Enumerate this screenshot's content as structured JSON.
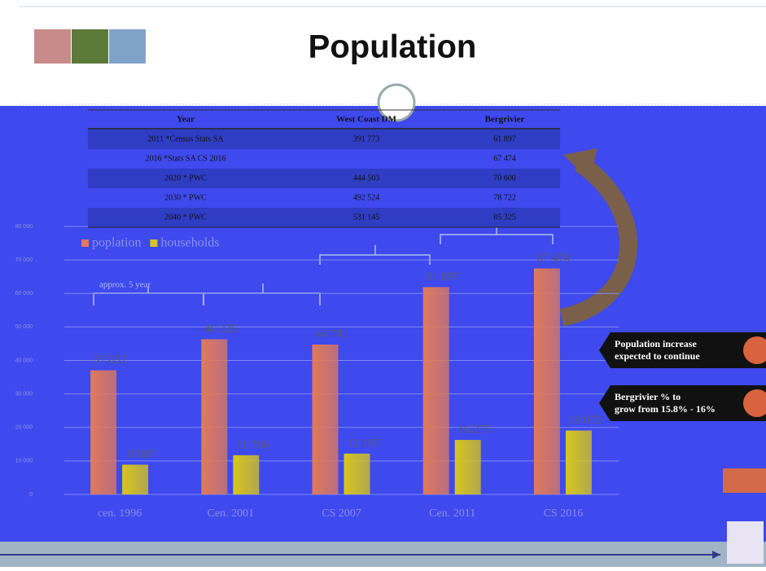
{
  "title": "Population",
  "table": {
    "header": [
      "Year",
      "West Coast DM",
      "Bergrivier"
    ],
    "rows": [
      [
        "2011 *Census Stats SA",
        "391 773",
        "61 897"
      ],
      [
        "2016 *Stats SA CS 2016",
        null,
        "67 474"
      ],
      [
        "2020 * PWC",
        "444 503",
        "70 600"
      ],
      [
        "2030 * PWC",
        "492 524",
        "78 722"
      ],
      [
        "2040 * PWC",
        "531 145",
        "85 325"
      ]
    ]
  },
  "callouts": [
    [
      "Population increase",
      "expected to continue"
    ],
    [
      "Bergrivier % to",
      "grow from 15.8% - 16%"
    ]
  ],
  "chart_data": {
    "type": "bar",
    "categories": [
      "cen. 1996",
      "Cen. 2001",
      "CS 2007",
      "Cen. 2011",
      "CS 2016"
    ],
    "series": [
      {
        "name": "poplation",
        "color": "#e07a5a",
        "values": [
          37052,
          46325,
          44741,
          61897,
          67474
        ],
        "value_labels": [
          "37 052",
          "46 325",
          "44 741",
          "61 897",
          "67 474"
        ]
      },
      {
        "name": "households",
        "color": "#d8c61c",
        "values": [
          8887,
          11706,
          12197,
          16275,
          19072
        ],
        "value_labels": [
          "8 887",
          "11 706",
          "12 197",
          "16 275",
          "19 072"
        ]
      }
    ],
    "ylim": [
      0,
      80000
    ],
    "yticks": [
      0,
      {
        "value": 10000,
        "label": "10 000"
      },
      {
        "value": 20000,
        "label": "20 000"
      },
      {
        "value": 30000,
        "label": "30 000"
      },
      {
        "value": 40000,
        "label": "40 000"
      },
      {
        "value": 50000,
        "label": "50 000"
      },
      {
        "value": 60000,
        "label": "60 000"
      },
      {
        "value": 70000,
        "label": "70 000"
      },
      {
        "value": 80000,
        "label": "80 000"
      }
    ],
    "grid": true,
    "legend": "top-left",
    "annotations": [
      "approx. 5 year"
    ]
  }
}
